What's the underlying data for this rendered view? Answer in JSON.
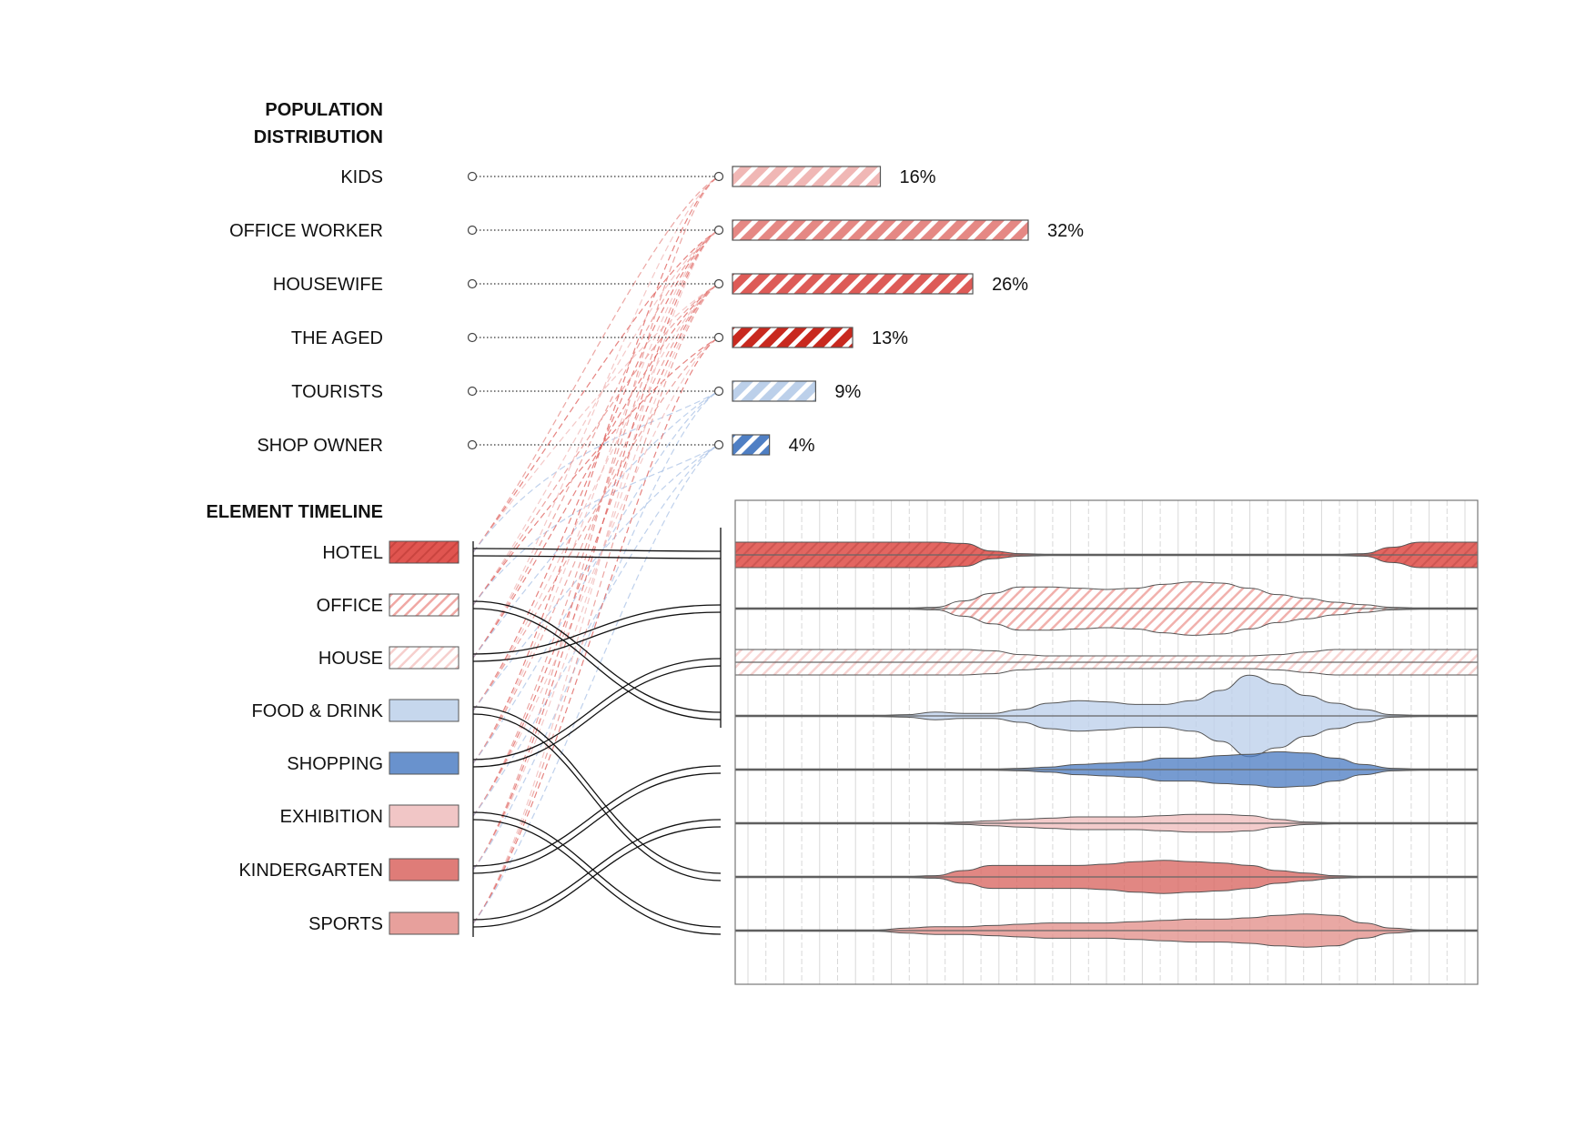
{
  "chart_data": [
    {
      "type": "bar",
      "title": "POPULATION\nDISTRIBUTION",
      "title_lines": [
        "POPULATION",
        "DISTRIBUTION"
      ],
      "categories": [
        "KIDS",
        "OFFICE WORKER",
        "HOUSEWIFE",
        "THE AGED",
        "TOURISTS",
        "SHOP OWNER"
      ],
      "values": [
        16,
        32,
        26,
        13,
        9,
        4
      ],
      "value_labels": [
        "16%",
        "32%",
        "26%",
        "13%",
        "9%",
        "4%"
      ],
      "colors": [
        "#f0b7b5",
        "#e58884",
        "#dd5b57",
        "#c8291f",
        "#bcd0ea",
        "#4f7fc4"
      ],
      "xlim": [
        0,
        32
      ],
      "orientation": "horizontal"
    },
    {
      "type": "area",
      "title": "ELEMENT TIMELINE",
      "series": [
        {
          "name": "HOTEL",
          "color": "#e05550",
          "fill": "hatch-dense",
          "values": [
            1.0,
            1.0,
            1.0,
            1.0,
            1.0,
            1.0,
            1.0,
            1.0,
            0.9,
            0.3,
            0.1,
            0.05,
            0.05,
            0.05,
            0.05,
            0.05,
            0.05,
            0.05,
            0.05,
            0.05,
            0.05,
            0.05,
            0.1,
            0.6,
            1.0,
            1.0,
            1.0
          ]
        },
        {
          "name": "OFFICE",
          "color": "#f0a8a4",
          "fill": "hatch",
          "values": [
            0.05,
            0.05,
            0.05,
            0.05,
            0.05,
            0.05,
            0.05,
            0.1,
            0.6,
            1.2,
            1.7,
            1.7,
            1.6,
            1.5,
            1.6,
            1.9,
            2.1,
            2.0,
            1.6,
            1.1,
            0.8,
            0.5,
            0.3,
            0.1,
            0.05,
            0.05,
            0.05
          ]
        },
        {
          "name": "HOUSE",
          "color": "#f6cfcd",
          "fill": "hatch-light",
          "values": [
            1.0,
            1.0,
            1.0,
            1.0,
            1.0,
            1.0,
            1.0,
            1.0,
            1.0,
            0.9,
            0.6,
            0.5,
            0.5,
            0.5,
            0.5,
            0.5,
            0.5,
            0.5,
            0.5,
            0.6,
            0.8,
            1.0,
            1.0,
            1.0,
            1.0,
            1.0,
            1.0
          ]
        },
        {
          "name": "FOOD & DRINK",
          "color": "#bcd0ea",
          "fill": "solid",
          "values": [
            0.05,
            0.05,
            0.05,
            0.05,
            0.05,
            0.05,
            0.1,
            0.3,
            0.2,
            0.2,
            0.5,
            1.0,
            1.2,
            1.1,
            0.9,
            0.9,
            1.2,
            2.0,
            3.2,
            2.5,
            1.6,
            1.0,
            0.5,
            0.1,
            0.05,
            0.05,
            0.05
          ]
        },
        {
          "name": "SHOPPING",
          "color": "#4f7fc4",
          "fill": "solid",
          "values": [
            0.05,
            0.05,
            0.05,
            0.05,
            0.05,
            0.05,
            0.05,
            0.05,
            0.05,
            0.05,
            0.1,
            0.2,
            0.4,
            0.5,
            0.6,
            0.9,
            0.9,
            1.1,
            1.2,
            1.4,
            1.3,
            0.9,
            0.4,
            0.1,
            0.05,
            0.05,
            0.05
          ]
        },
        {
          "name": "EXHIBITION",
          "color": "#efbcbc",
          "fill": "solid",
          "values": [
            0.05,
            0.05,
            0.05,
            0.05,
            0.05,
            0.05,
            0.05,
            0.05,
            0.1,
            0.2,
            0.3,
            0.4,
            0.5,
            0.5,
            0.5,
            0.6,
            0.7,
            0.7,
            0.6,
            0.3,
            0.1,
            0.05,
            0.05,
            0.05,
            0.05,
            0.05,
            0.05
          ]
        },
        {
          "name": "KINDERGARTEN",
          "color": "#d96560",
          "fill": "solid",
          "values": [
            0.05,
            0.05,
            0.05,
            0.05,
            0.05,
            0.05,
            0.05,
            0.1,
            0.5,
            0.9,
            0.9,
            0.9,
            0.9,
            1.0,
            1.2,
            1.3,
            1.2,
            1.1,
            0.9,
            0.5,
            0.3,
            0.1,
            0.05,
            0.05,
            0.05,
            0.05,
            0.05
          ]
        },
        {
          "name": "SPORTS",
          "color": "#e38f8b",
          "fill": "solid",
          "values": [
            0.05,
            0.05,
            0.05,
            0.05,
            0.05,
            0.05,
            0.2,
            0.3,
            0.3,
            0.4,
            0.5,
            0.6,
            0.6,
            0.6,
            0.7,
            0.8,
            0.9,
            0.9,
            1.0,
            1.2,
            1.3,
            1.2,
            0.6,
            0.2,
            0.05,
            0.05,
            0.05
          ]
        }
      ],
      "x_periods": 27,
      "grid": true
    }
  ]
}
